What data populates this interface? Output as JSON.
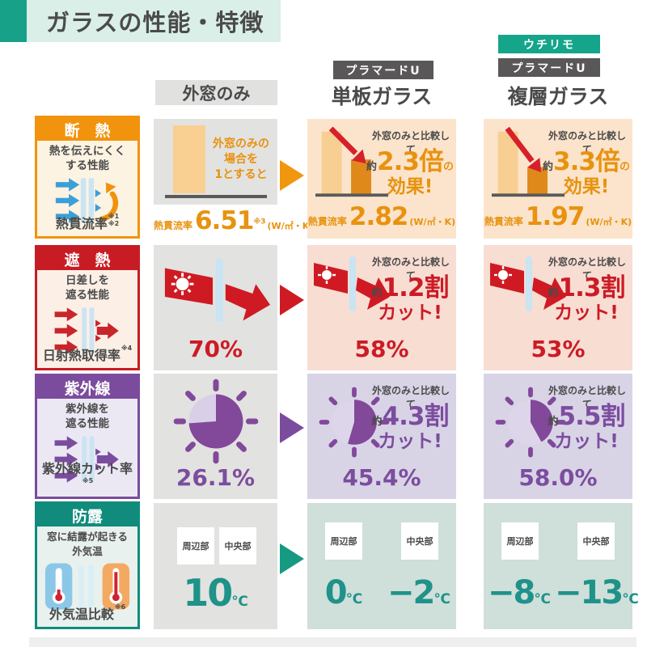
{
  "page": {
    "title": "ガラスの性能・特徴"
  },
  "colors": {
    "orange": "#f2930d",
    "red": "#c81c24",
    "purple": "#7b4b9d",
    "teal": "#14a58b",
    "dark_badge": "#595757",
    "mint": "#d9efe7"
  },
  "headers": {
    "baseline": "外窓のみ",
    "single": {
      "badge": "プラマードU",
      "label": "単板ガラス"
    },
    "double": {
      "badge_top": "ウチリモ",
      "badge": "プラマードU",
      "label": "複層ガラス"
    }
  },
  "rows": [
    {
      "title": "断　熱",
      "desc_line1": "熱を伝えにくく",
      "desc_line2": "する性能",
      "metric": "熱貫流率",
      "note1": "※1",
      "note2": "※2",
      "baseline_note_l1": "外窓のみの",
      "baseline_note_l2": "場合を",
      "baseline_note_l3": "1とすると",
      "baseline_metric": "熱貫流率",
      "baseline_value": "6.51",
      "baseline_sup": "※3",
      "baseline_unit": "(W/㎡・K)",
      "single": {
        "compare": "外窓のみと比較して",
        "approx": "約",
        "big": "2.3倍",
        "small": "の",
        "line2": "効果!",
        "metric": "熱貫流率",
        "value": "2.82",
        "unit": "(W/㎡・K)"
      },
      "double": {
        "compare": "外窓のみと比較して",
        "approx": "約",
        "big": "3.3倍",
        "small": "の",
        "line2": "効果!",
        "metric": "熱貫流率",
        "value": "1.97",
        "unit": "(W/㎡・K)"
      }
    },
    {
      "title": "遮　熱",
      "desc_line1": "日差しを",
      "desc_line2": "遮る性能",
      "metric": "日射熱取得率",
      "note1": "※4",
      "baseline_value": "70%",
      "single": {
        "compare": "外窓のみと比較して",
        "approx": "約",
        "big": "1.2割",
        "line2": "カット!",
        "value": "58%"
      },
      "double": {
        "compare": "外窓のみと比較して",
        "approx": "約",
        "big": "1.3割",
        "line2": "カット!",
        "value": "53%"
      }
    },
    {
      "title": "紫外線",
      "desc_line1": "紫外線を",
      "desc_line2": "遮る性能",
      "metric": "紫外線カット率",
      "note1": "※5",
      "baseline_value": "26.1%",
      "baseline_pie": 26.1,
      "single": {
        "compare": "外窓のみと比較して",
        "approx": "約",
        "big": "4.3割",
        "line2": "カット!",
        "value": "45.4%",
        "pie": 45.4
      },
      "double": {
        "compare": "外窓のみと比較して",
        "approx": "約",
        "big": "5.5割",
        "line2": "カット!",
        "value": "58.0%",
        "pie": 58.0
      }
    },
    {
      "title": "防露",
      "desc_line1": "窓に結露が起きる",
      "desc_line2": "外気温",
      "metric": "外気温比較",
      "note1": "※6",
      "label_edge": "周辺部",
      "label_center": "中央部",
      "baseline_value": "10",
      "baseline_unit": "℃",
      "single": {
        "edge": "0",
        "edge_unit": "℃",
        "center": "−2",
        "center_unit": "℃"
      },
      "double": {
        "edge": "−8",
        "edge_unit": "℃",
        "center": "−13",
        "center_unit": "℃"
      }
    }
  ]
}
